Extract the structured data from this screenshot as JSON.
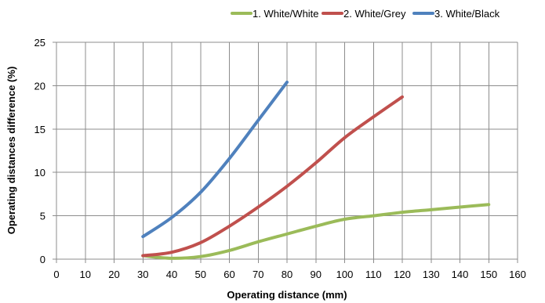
{
  "chart_data": {
    "type": "line",
    "title": "",
    "xlabel": "Operating distance (mm)",
    "ylabel": "Operating distances difference (%)",
    "xlim": [
      0,
      160
    ],
    "ylim": [
      0,
      25
    ],
    "x_ticks": [
      0,
      10,
      20,
      30,
      40,
      50,
      60,
      70,
      80,
      90,
      100,
      110,
      120,
      130,
      140,
      150,
      160
    ],
    "y_ticks": [
      0,
      5,
      10,
      15,
      20,
      25
    ],
    "grid": true,
    "legend_position": "top-right",
    "series": [
      {
        "name": "1. White/White",
        "color": "#9BBB59",
        "points": [
          [
            30,
            0.4
          ],
          [
            40,
            0.1
          ],
          [
            50,
            0.3
          ],
          [
            60,
            1.0
          ],
          [
            70,
            2.0
          ],
          [
            80,
            2.9
          ],
          [
            90,
            3.8
          ],
          [
            100,
            4.6
          ],
          [
            110,
            5.0
          ],
          [
            120,
            5.4
          ],
          [
            130,
            5.7
          ],
          [
            140,
            6.0
          ],
          [
            150,
            6.3
          ]
        ]
      },
      {
        "name": "2. White/Grey",
        "color": "#C0504D",
        "points": [
          [
            30,
            0.4
          ],
          [
            40,
            0.8
          ],
          [
            50,
            1.9
          ],
          [
            60,
            3.8
          ],
          [
            70,
            6.0
          ],
          [
            80,
            8.4
          ],
          [
            90,
            11.1
          ],
          [
            100,
            14.0
          ],
          [
            110,
            16.4
          ],
          [
            120,
            18.7
          ]
        ]
      },
      {
        "name": "3. White/Black",
        "color": "#4F81BD",
        "points": [
          [
            30,
            2.6
          ],
          [
            40,
            4.8
          ],
          [
            50,
            7.7
          ],
          [
            60,
            11.6
          ],
          [
            70,
            16.0
          ],
          [
            80,
            20.4
          ]
        ]
      }
    ]
  }
}
